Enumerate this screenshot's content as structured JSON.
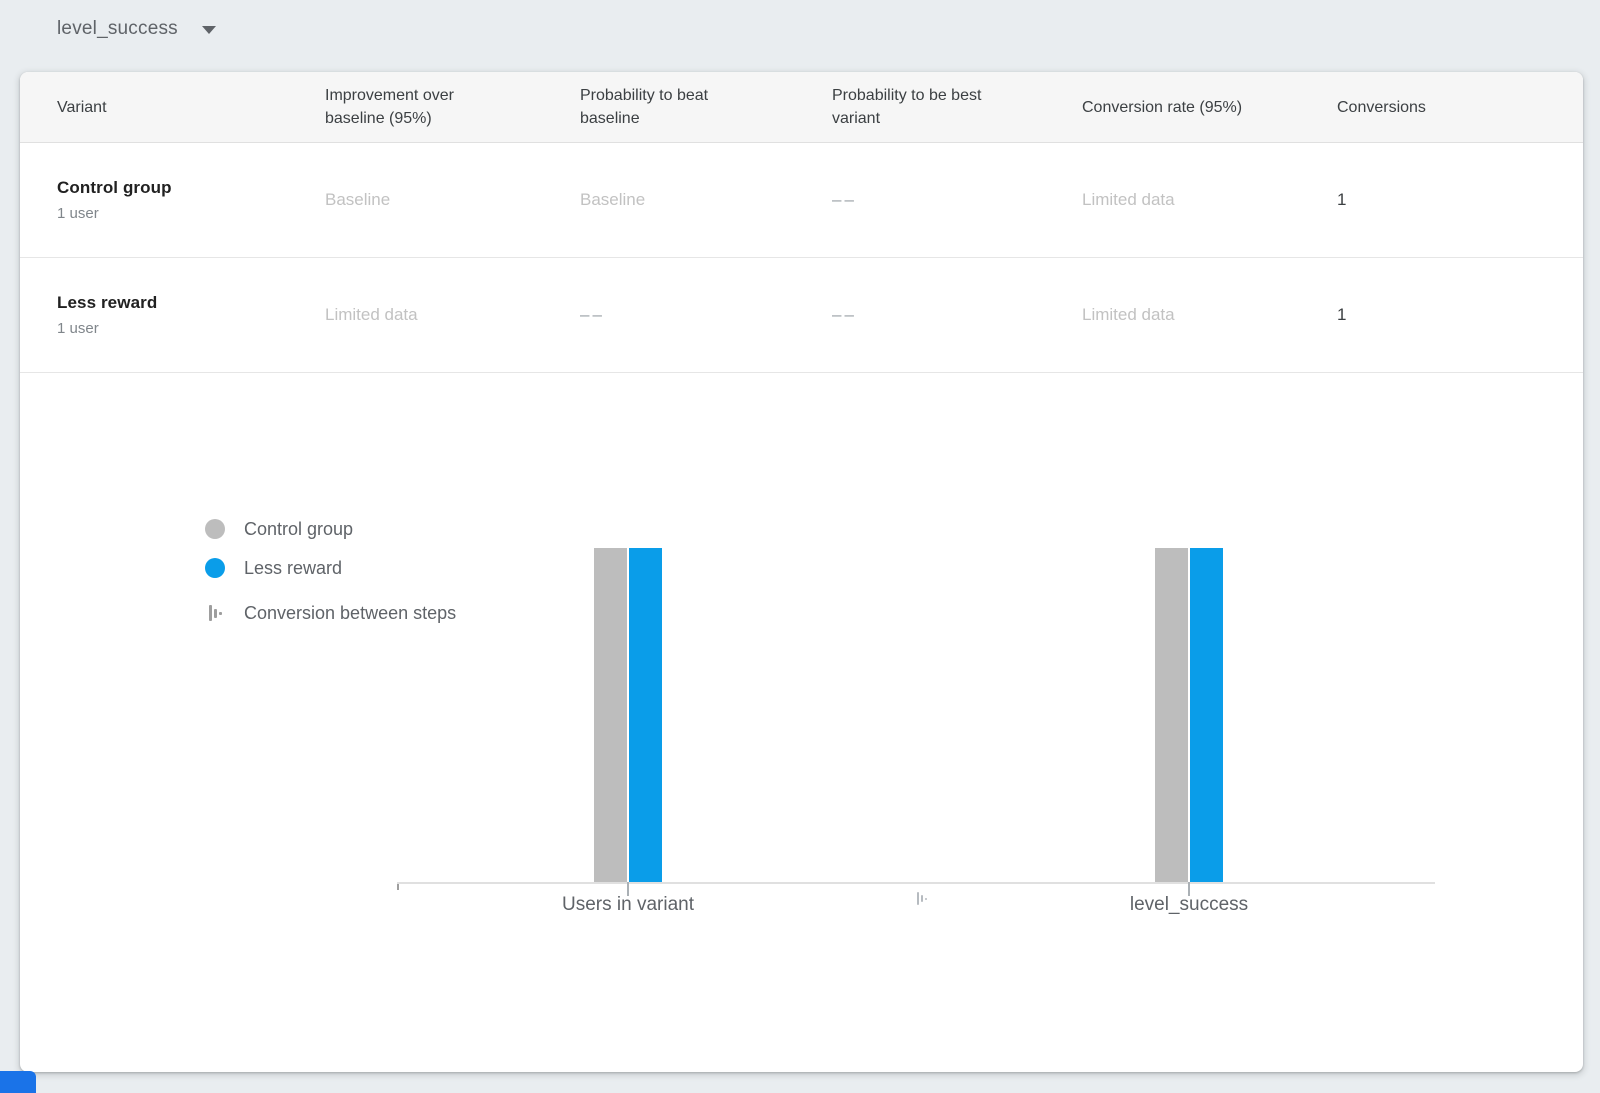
{
  "page": {
    "background": "#e9edf0"
  },
  "metric_selector": {
    "label": "level_success",
    "icon": "dropdown-caret"
  },
  "table": {
    "headers": [
      "Variant",
      "Improvement over baseline (95%)",
      "Probability to beat baseline",
      "Probability to be best variant",
      "Conversion rate (95%)",
      "Conversions"
    ],
    "rows": [
      {
        "variant": "Control group",
        "users": "1 user",
        "improvement": "Baseline",
        "prob_beat_baseline": "Baseline",
        "prob_best_variant": "––",
        "conversion_rate": "Limited data",
        "conversions": "1"
      },
      {
        "variant": "Less reward",
        "users": "1 user",
        "improvement": "Limited data",
        "prob_beat_baseline": "––",
        "prob_best_variant": "––",
        "conversion_rate": "Limited data",
        "conversions": "1"
      }
    ]
  },
  "legend": {
    "items": [
      {
        "label": "Control group",
        "color": "#bdbdbd",
        "swatch": "circle"
      },
      {
        "label": "Less reward",
        "color": "#0a9de9",
        "swatch": "circle"
      },
      {
        "label": "Conversion between steps",
        "swatch": "steps-icon"
      }
    ]
  },
  "chart_data": {
    "type": "bar",
    "title": "",
    "categories": [
      "Users in variant",
      "level_success"
    ],
    "series": [
      {
        "name": "Control group",
        "color": "#bdbdbd",
        "values": [
          1,
          1
        ]
      },
      {
        "name": "Less reward",
        "color": "#0a9de9",
        "values": [
          1,
          1
        ]
      }
    ],
    "ylim": [
      0,
      1
    ],
    "grid": false,
    "legend_position": "left",
    "xlabel": "",
    "ylabel": ""
  },
  "colors": {
    "page_background": "#e9edf0",
    "card_background": "#ffffff",
    "table_header_background": "#f6f6f6",
    "control_gray": "#bdbdbd",
    "variant_blue": "#0a9de9",
    "dim_text": "#c2c2c2",
    "corner_element_blue": "#1a73e8"
  }
}
